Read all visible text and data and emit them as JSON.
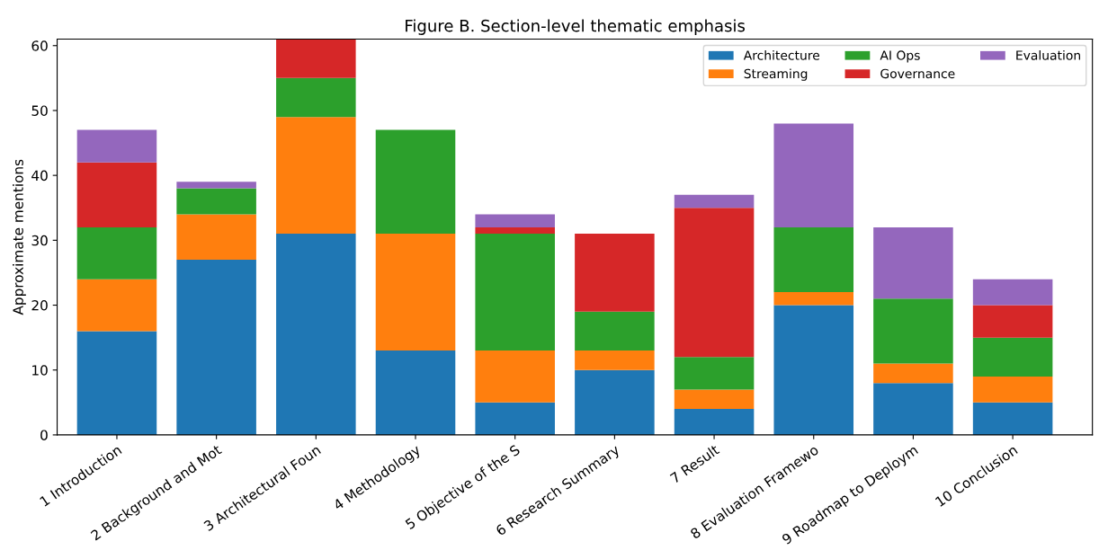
{
  "chart_data": {
    "type": "bar",
    "title": "Figure B. Section-level thematic emphasis",
    "ylabel": "Approximate mentions",
    "categories": [
      "1 Introduction",
      "2 Background and Mot",
      "3 Architectural Foun",
      "4 Methodology",
      "5 Objective of the S",
      "6 Research Summary",
      "7 Result",
      "8 Evaluation Framewo",
      "9 Roadmap to Deploym",
      "10 Conclusion"
    ],
    "stacked": true,
    "ylim": [
      0,
      61
    ],
    "yticks": [
      0,
      10,
      20,
      30,
      40,
      50,
      60
    ],
    "grid": false,
    "legend": "top right",
    "series": [
      {
        "name": "Architecture",
        "color": "#1f77b4",
        "values": [
          16,
          27,
          31,
          13,
          5,
          10,
          4,
          20,
          8,
          5
        ]
      },
      {
        "name": "Streaming",
        "color": "#ff7f0e",
        "values": [
          8,
          7,
          18,
          18,
          8,
          3,
          3,
          2,
          3,
          4
        ]
      },
      {
        "name": "AI Ops",
        "color": "#2ca02c",
        "values": [
          8,
          4,
          6,
          16,
          18,
          6,
          5,
          10,
          10,
          6
        ]
      },
      {
        "name": "Governance",
        "color": "#d62728",
        "values": [
          10,
          0,
          6,
          0,
          1,
          12,
          23,
          0,
          0,
          5
        ]
      },
      {
        "name": "Evaluation",
        "color": "#9467bd",
        "values": [
          5,
          1,
          null,
          0,
          2,
          0,
          2,
          16,
          11,
          4
        ]
      }
    ]
  }
}
